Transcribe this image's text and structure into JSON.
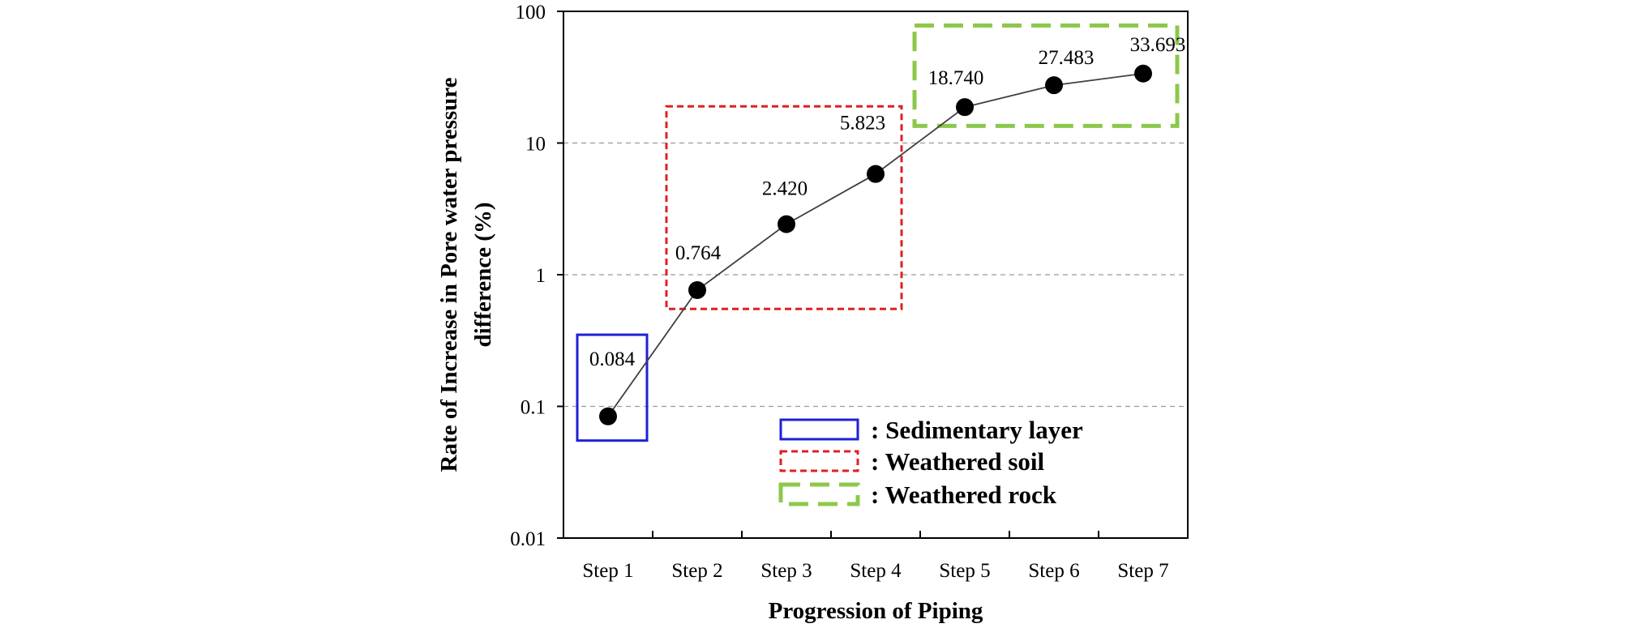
{
  "chart_data": {
    "type": "line",
    "categories": [
      "Step 1",
      "Step 2",
      "Step 3",
      "Step 4",
      "Step 5",
      "Step 6",
      "Step 7"
    ],
    "values": [
      0.084,
      0.764,
      2.42,
      5.823,
      18.74,
      27.483,
      33.693
    ],
    "value_labels": [
      "0.084",
      "0.764",
      "2.420",
      "5.823",
      "18.740",
      "27.483",
      "33.693"
    ],
    "xlabel": "Progression of Piping",
    "ylabel_lines": [
      "Rate of Increase in Pore water pressure",
      "difference (%)"
    ],
    "yscale": "log",
    "ylim": [
      0.01,
      100
    ],
    "y_ticks": [
      0.01,
      0.1,
      1,
      10,
      100
    ],
    "y_tick_labels": [
      "0.01",
      "0.1",
      "1",
      "10",
      "100"
    ],
    "grid": "horizontal dashed",
    "line_color": "#404040",
    "marker_color": "#000000",
    "regions": [
      {
        "label": ": Sedimentary layer",
        "steps": [
          "Step 1"
        ],
        "color": "#1f1fd6",
        "style": "solid",
        "y_range": [
          0.055,
          0.35
        ]
      },
      {
        "label": ": Weathered soil",
        "steps": [
          "Step 2",
          "Step 3",
          "Step 4"
        ],
        "color": "#e02020",
        "style": "dashed",
        "y_range": [
          0.55,
          19
        ]
      },
      {
        "label": ": Weathered rock",
        "steps": [
          "Step 5",
          "Step 6",
          "Step 7"
        ],
        "color": "#8cc84b",
        "style": "dashed",
        "y_range": [
          13.5,
          78
        ]
      }
    ],
    "legend_placement": "bottom-right"
  }
}
